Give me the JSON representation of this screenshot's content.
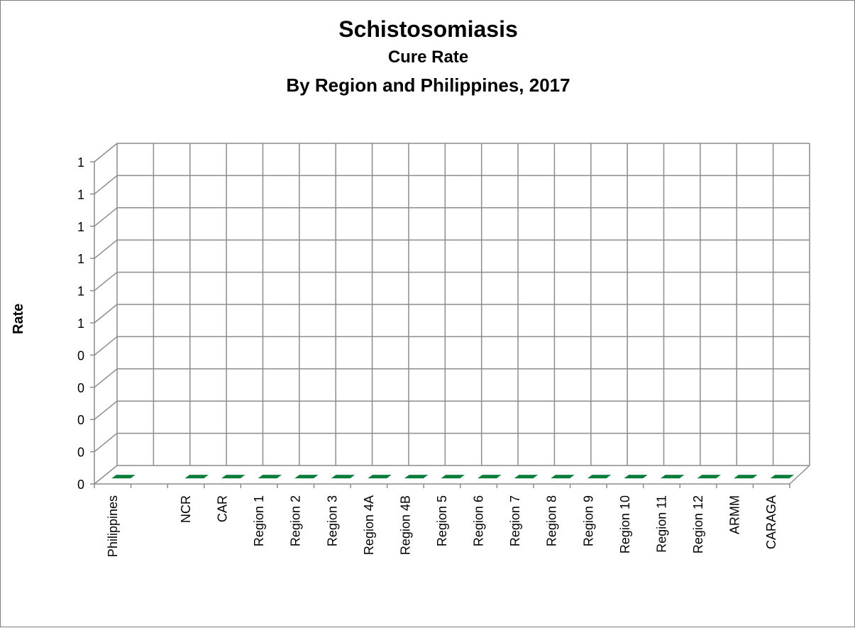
{
  "chart_data": {
    "type": "bar",
    "title": "Schistosomiasis",
    "subtitle": "Cure Rate",
    "subtitle2": "By Region and Philippines, 2017",
    "xlabel": "",
    "ylabel": "Rate",
    "categories": [
      "Philippines",
      "",
      "NCR",
      "CAR",
      "Region 1",
      "Region 2",
      "Region 3",
      "Region 4A",
      "Region 4B",
      "Region 5",
      "Region 6",
      "Region 7",
      "Region 8",
      "Region 9",
      "Region 10",
      "Region 11",
      "Region 12",
      "ARMM",
      "CARAGA"
    ],
    "values": [
      0,
      null,
      0,
      0,
      0,
      0,
      0,
      0,
      0,
      0,
      0,
      0,
      0,
      0,
      0,
      0,
      0,
      0,
      0
    ],
    "y_tick_labels": [
      "0",
      "0",
      "0",
      "0",
      "0",
      "1",
      "1",
      "1",
      "1",
      "1",
      "1"
    ],
    "ylim": [
      0,
      1
    ],
    "grid": true,
    "legend": "none",
    "bar_color": "#0a7c3c"
  }
}
